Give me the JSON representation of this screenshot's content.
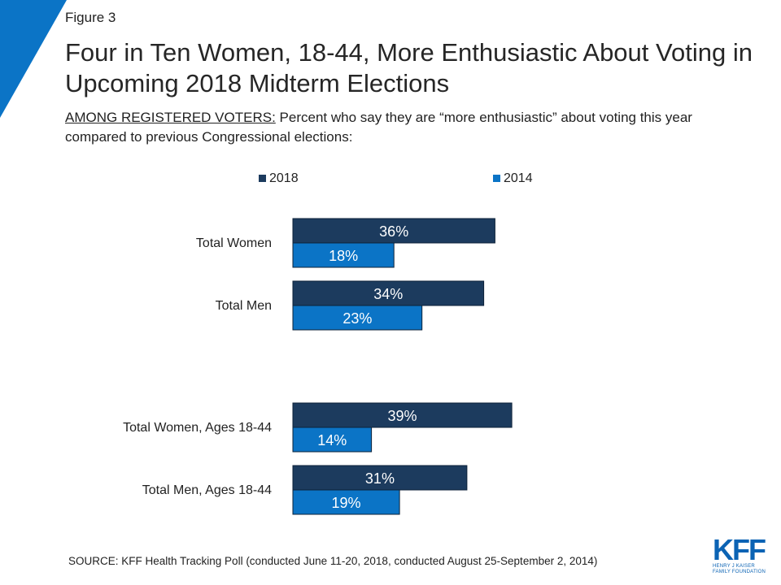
{
  "figure_label": "Figure 3",
  "title": "Four in Ten Women, 18-44, More Enthusiastic About Voting in Upcoming 2018 Midterm Elections",
  "subtitle_lead": "AMONG REGISTERED VOTERS:",
  "subtitle_rest": " Percent who say they are “more enthusiastic” about voting this year compared to previous Congressional elections:",
  "source": "SOURCE: KFF Health Tracking Poll (conducted June 11-20, 2018, conducted August 25-September 2, 2014)",
  "logo": {
    "text": "KFF",
    "line1": "HENRY J KAISER",
    "line2": "FAMILY FOUNDATION"
  },
  "colors": {
    "series_2018": "#1c3b5e",
    "series_2014": "#0b74c6",
    "accent": "#0b74c6"
  },
  "chart_data": {
    "type": "bar",
    "orientation": "horizontal",
    "categories": [
      "Total Women",
      "Total Men",
      "Total Women, Ages 18-44",
      "Total Men, Ages 18-44"
    ],
    "series": [
      {
        "name": "2018",
        "values": [
          36,
          34,
          39,
          31
        ]
      },
      {
        "name": "2014",
        "values": [
          18,
          23,
          14,
          19
        ]
      }
    ],
    "value_suffix": "%",
    "legend_position": "top",
    "grid": false
  }
}
